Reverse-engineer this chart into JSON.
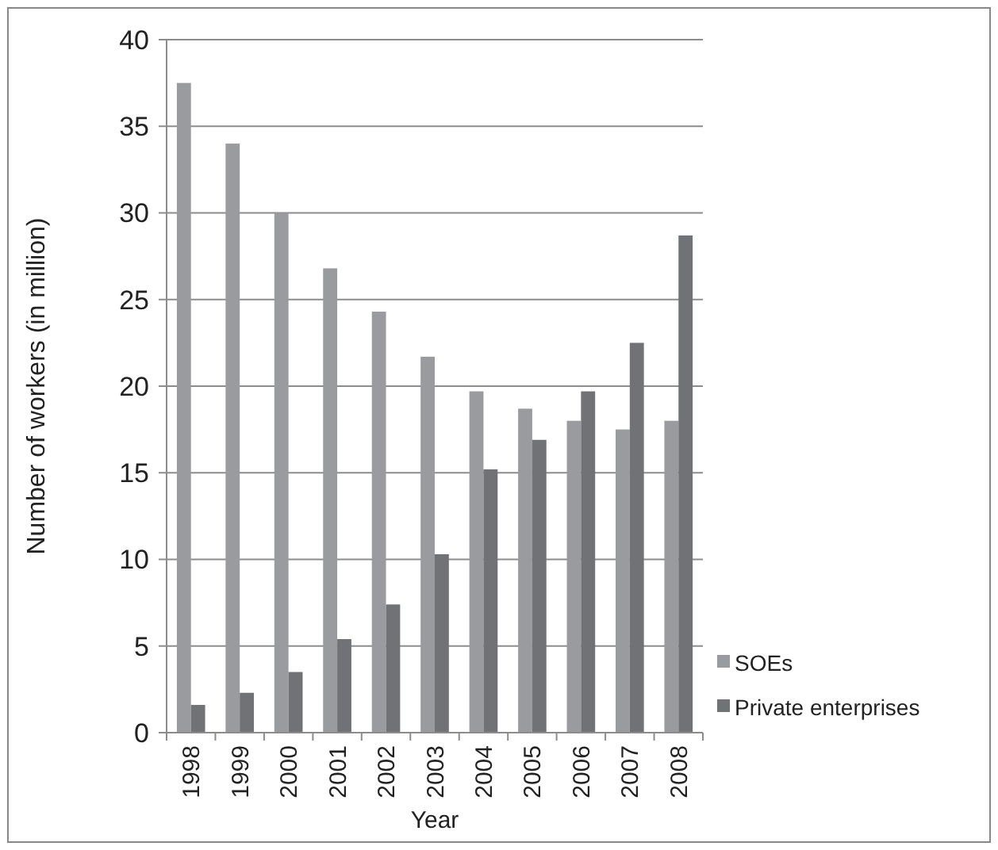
{
  "chart_data": {
    "type": "bar",
    "xlabel": "Year",
    "ylabel": "Number of workers (in million)",
    "categories": [
      "1998",
      "1999",
      "2000",
      "2001",
      "2002",
      "2003",
      "2004",
      "2005",
      "2006",
      "2007",
      "2008"
    ],
    "series": [
      {
        "name": "SOEs",
        "color": "#9a9b9f",
        "values": [
          37.5,
          34.0,
          30.0,
          26.8,
          24.3,
          21.7,
          19.7,
          18.7,
          18.0,
          17.5,
          18.0
        ]
      },
      {
        "name": "Private enterprises",
        "color": "#717276",
        "values": [
          1.6,
          2.3,
          3.5,
          5.4,
          7.4,
          10.3,
          15.2,
          16.9,
          19.7,
          22.5,
          28.7
        ]
      }
    ],
    "ylim": [
      0,
      40
    ],
    "yticks": [
      0,
      5,
      10,
      15,
      20,
      25,
      30,
      35,
      40
    ],
    "grid": "y",
    "legend": "bottom right"
  }
}
